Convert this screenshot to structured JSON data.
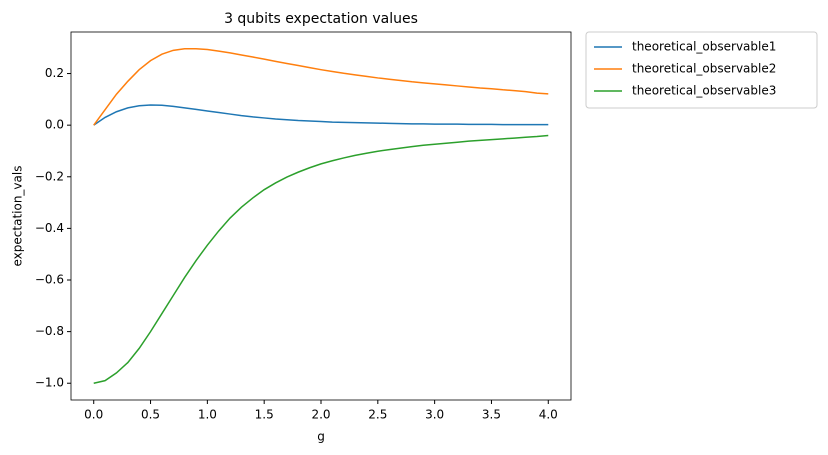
{
  "chart_data": {
    "type": "line",
    "title": "3 qubits expectation values",
    "xlabel": "g",
    "ylabel": "expectation_vals",
    "x": [
      0.0,
      0.1,
      0.2,
      0.3,
      0.4,
      0.5,
      0.6,
      0.7,
      0.8,
      0.9,
      1.0,
      1.1,
      1.2,
      1.3,
      1.4,
      1.5,
      1.6,
      1.7,
      1.8,
      1.9,
      2.0,
      2.1,
      2.2,
      2.3,
      2.4,
      2.5,
      2.6,
      2.7,
      2.8,
      2.9,
      3.0,
      3.1,
      3.2,
      3.3,
      3.4,
      3.5,
      3.6,
      3.7,
      3.8,
      3.9,
      4.0
    ],
    "series": [
      {
        "name": "theoretical_observable1",
        "color": "#1f77b4",
        "values": [
          0,
          0.03,
          0.052,
          0.067,
          0.075,
          0.078,
          0.077,
          0.073,
          0.067,
          0.061,
          0.055,
          0.049,
          0.043,
          0.037,
          0.032,
          0.028,
          0.024,
          0.021,
          0.018,
          0.016,
          0.014,
          0.012,
          0.011,
          0.01,
          0.009,
          0.008,
          0.007,
          0.006,
          0.005,
          0.005,
          0.004,
          0.004,
          0.004,
          0.003,
          0.003,
          0.003,
          0.002,
          0.002,
          0.002,
          0.002,
          0.002
        ]
      },
      {
        "name": "theoretical_observable2",
        "color": "#ff7f0e",
        "values": [
          0,
          0.06,
          0.12,
          0.17,
          0.215,
          0.25,
          0.275,
          0.29,
          0.296,
          0.296,
          0.293,
          0.287,
          0.28,
          0.272,
          0.264,
          0.256,
          0.247,
          0.239,
          0.231,
          0.223,
          0.215,
          0.208,
          0.201,
          0.195,
          0.189,
          0.183,
          0.178,
          0.173,
          0.168,
          0.164,
          0.16,
          0.156,
          0.152,
          0.148,
          0.144,
          0.141,
          0.137,
          0.134,
          0.13,
          0.124,
          0.121
        ]
      },
      {
        "name": "theoretical_observable3",
        "color": "#2ca02c",
        "values": [
          -1.0,
          -0.99,
          -0.96,
          -0.92,
          -0.865,
          -0.8,
          -0.73,
          -0.66,
          -0.59,
          -0.525,
          -0.465,
          -0.41,
          -0.36,
          -0.318,
          -0.282,
          -0.25,
          -0.224,
          -0.201,
          -0.182,
          -0.165,
          -0.15,
          -0.138,
          -0.127,
          -0.117,
          -0.109,
          -0.101,
          -0.095,
          -0.089,
          -0.083,
          -0.078,
          -0.074,
          -0.07,
          -0.066,
          -0.062,
          -0.059,
          -0.056,
          -0.053,
          -0.05,
          -0.047,
          -0.044,
          -0.04
        ]
      }
    ],
    "xlim": [
      -0.2,
      4.2
    ],
    "ylim": [
      -1.065,
      0.361
    ],
    "xticks": [
      {
        "value": 0,
        "label": "0.0"
      },
      {
        "value": 0.5,
        "label": "0.5"
      },
      {
        "value": 1,
        "label": "1.0"
      },
      {
        "value": 1.5,
        "label": "1.5"
      },
      {
        "value": 2,
        "label": "2.0"
      },
      {
        "value": 2.5,
        "label": "2.5"
      },
      {
        "value": 3,
        "label": "3.0"
      },
      {
        "value": 3.5,
        "label": "3.5"
      },
      {
        "value": 4,
        "label": "4.0"
      }
    ],
    "yticks": [
      {
        "value": -1,
        "label": "−1.0"
      },
      {
        "value": -0.8,
        "label": "−0.8"
      },
      {
        "value": -0.6,
        "label": "−0.6"
      },
      {
        "value": -0.4,
        "label": "−0.4"
      },
      {
        "value": -0.2,
        "label": "−0.2"
      },
      {
        "value": 0,
        "label": "0.0"
      },
      {
        "value": 0.2,
        "label": "0.2"
      }
    ],
    "grid": false,
    "legend": "outside-right"
  }
}
